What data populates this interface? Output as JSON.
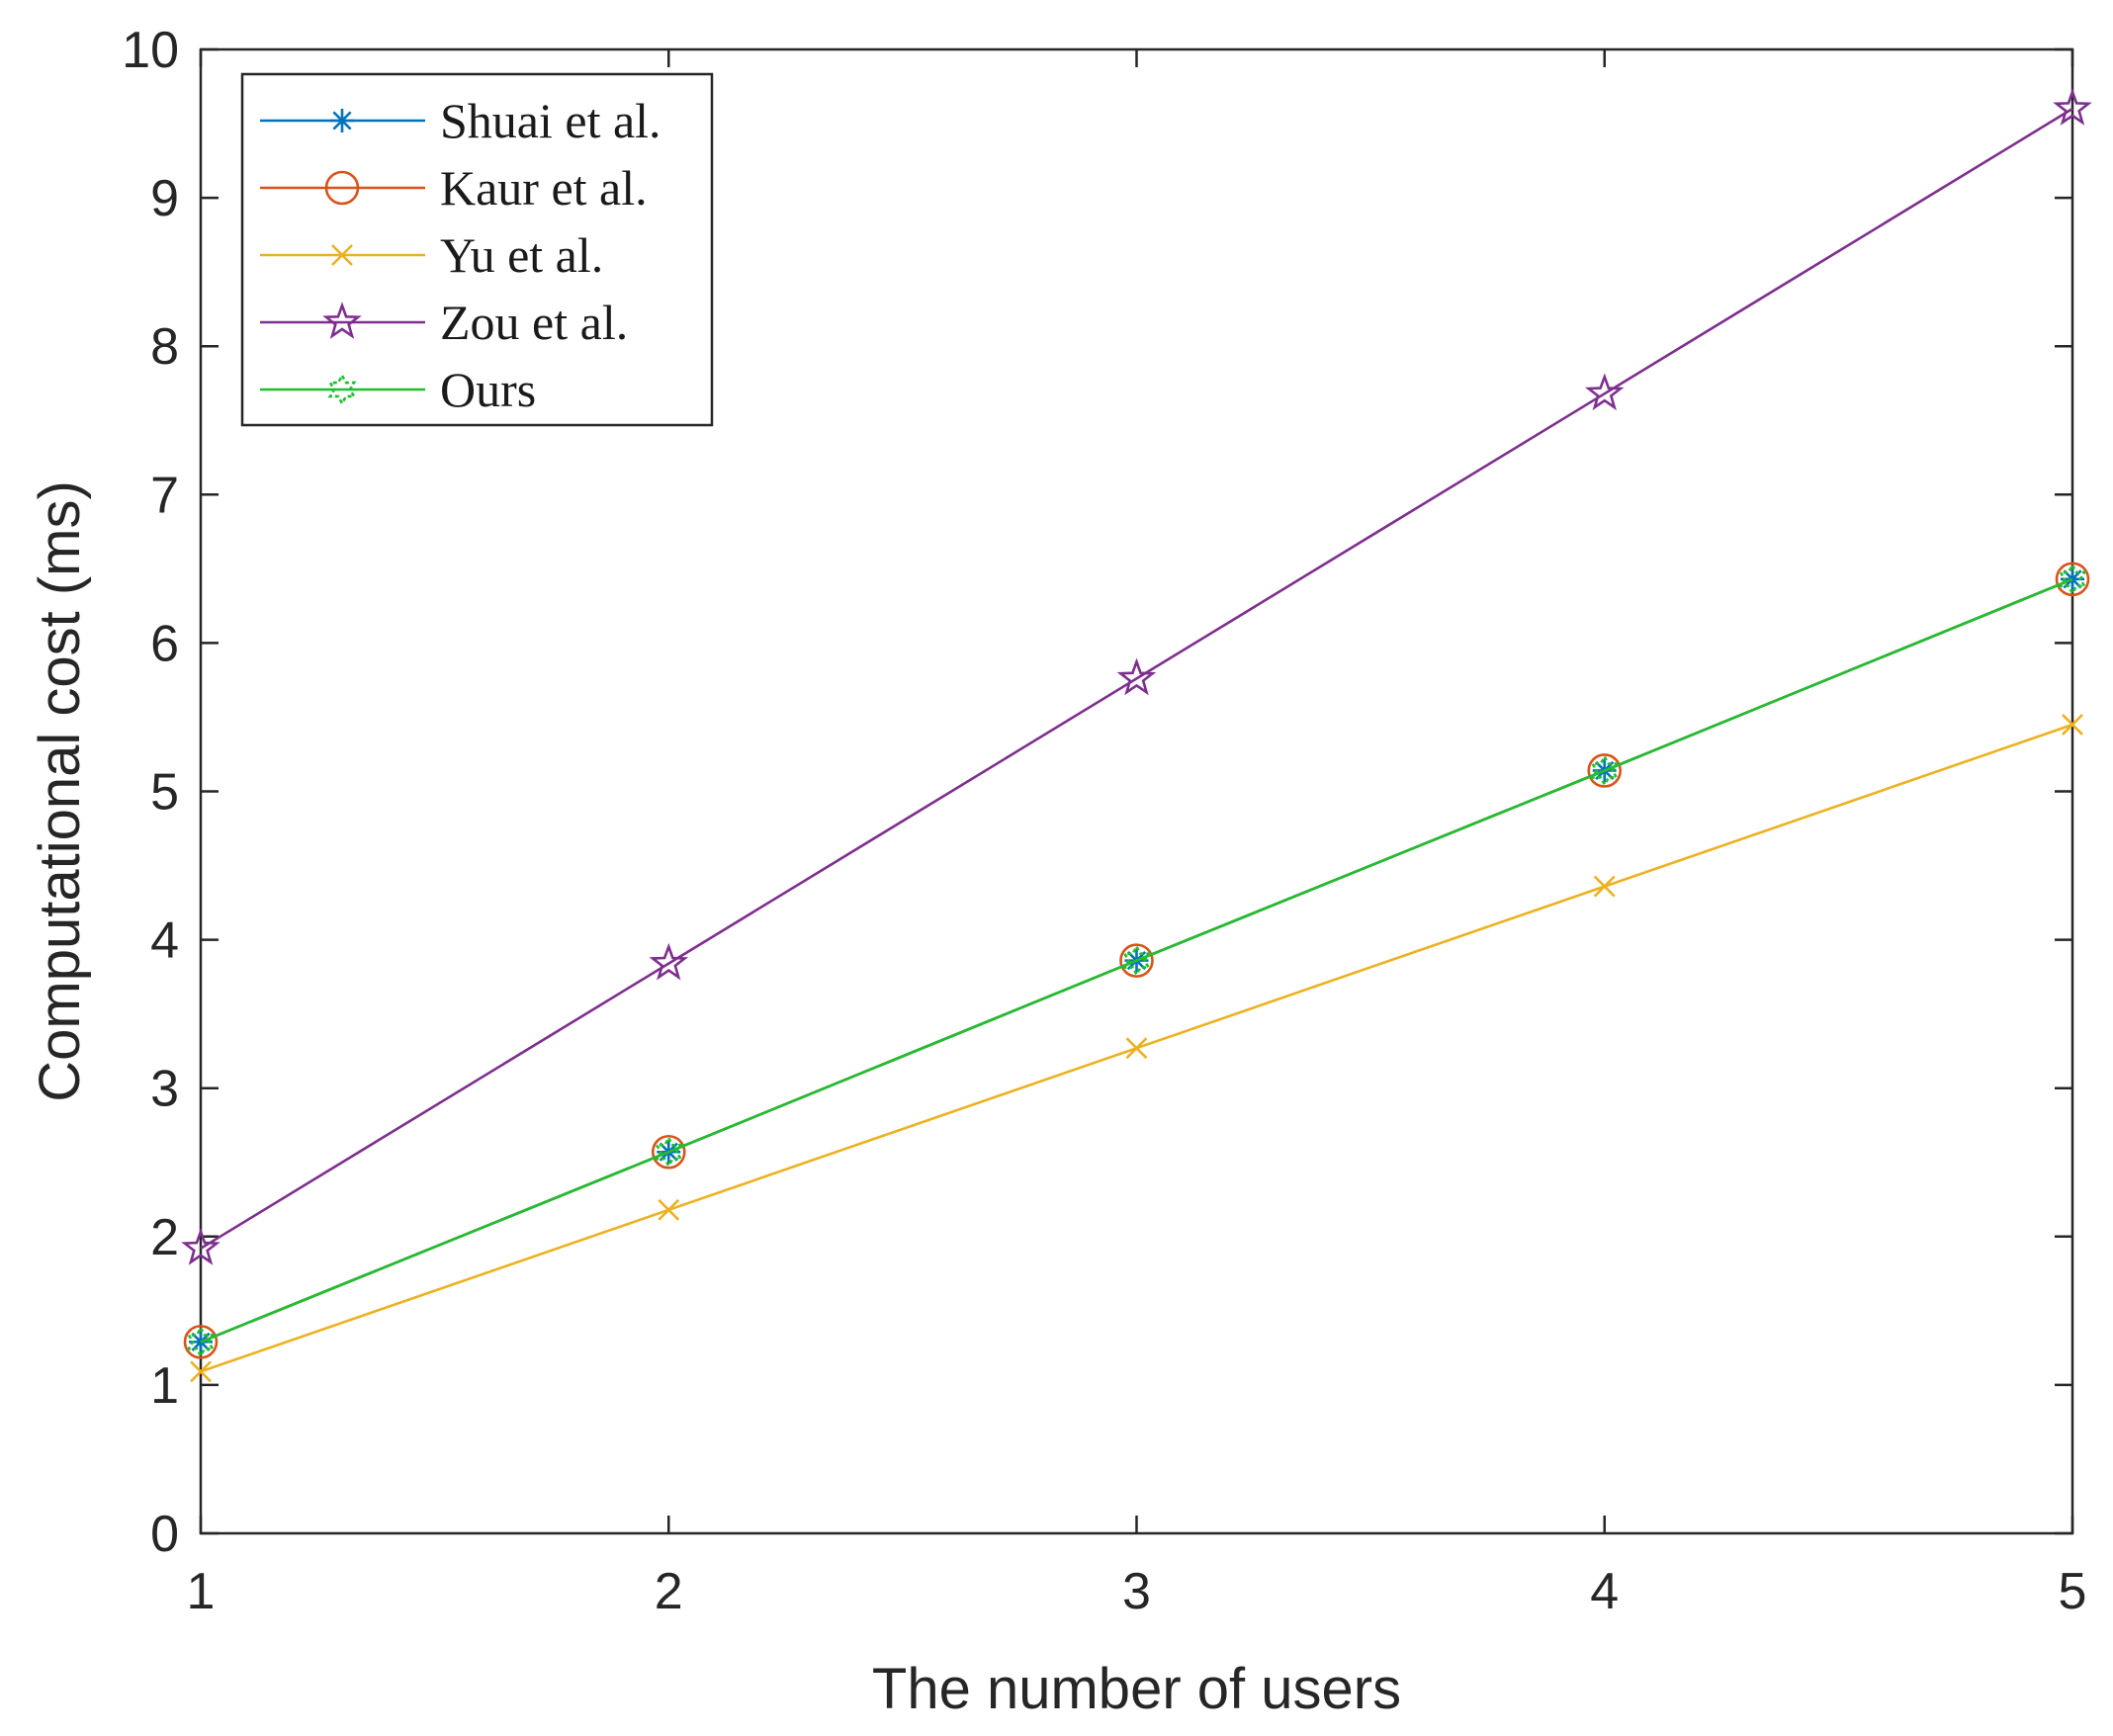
{
  "chart_data": {
    "type": "line",
    "title": "",
    "xlabel": "The number of users",
    "ylabel": "Computational cost (ms)",
    "xlim": [
      1,
      5
    ],
    "ylim": [
      0,
      10
    ],
    "xticks": [
      1,
      2,
      3,
      4,
      5
    ],
    "yticks": [
      0,
      1,
      2,
      3,
      4,
      5,
      6,
      7,
      8,
      9,
      10
    ],
    "grid": false,
    "legend_position": "top-left",
    "x": [
      1,
      2,
      3,
      4,
      5
    ],
    "series": [
      {
        "name": "Shuai et al.",
        "color": "#0072BD",
        "marker": "asterisk",
        "values": [
          1.29,
          2.57,
          3.86,
          5.14,
          6.43
        ]
      },
      {
        "name": "Kaur et al.",
        "color": "#D95319",
        "marker": "circle",
        "values": [
          1.29,
          2.57,
          3.86,
          5.14,
          6.43
        ]
      },
      {
        "name": "Yu et al.",
        "color": "#EDB120",
        "marker": "x",
        "values": [
          1.09,
          2.18,
          3.27,
          4.36,
          5.45
        ]
      },
      {
        "name": "Zou et al.",
        "color": "#7E2F8E",
        "marker": "pentagram",
        "values": [
          1.92,
          3.84,
          5.76,
          7.68,
          9.6
        ]
      },
      {
        "name": "Ours",
        "color": "#1FBF2F",
        "marker": "hexagram",
        "values": [
          1.29,
          2.57,
          3.86,
          5.14,
          6.43
        ]
      }
    ]
  }
}
